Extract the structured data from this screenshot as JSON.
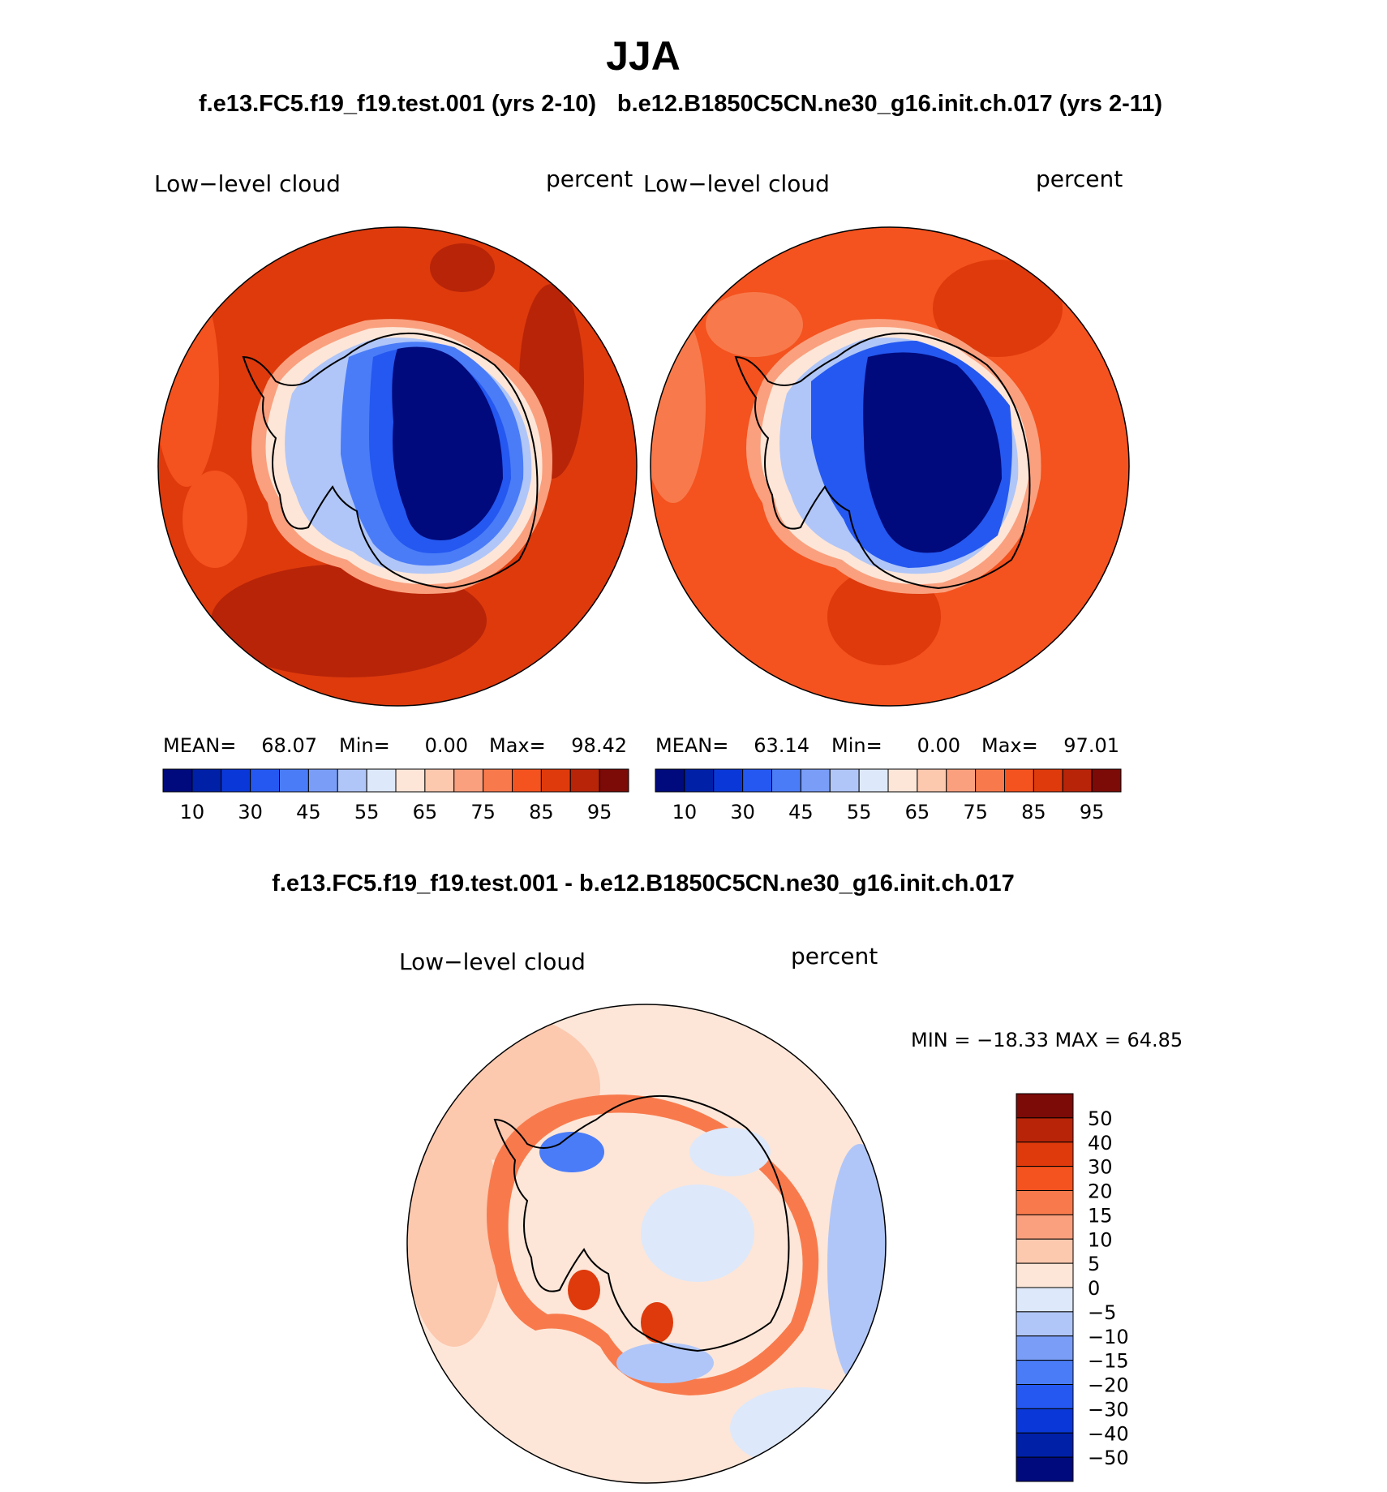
{
  "page": {
    "season": "JJA",
    "left_case": "f.e13.FC5.f19_f19.test.001 (yrs 2-10)",
    "right_case": "b.e12.B1850C5CN.ne30_g16.init.ch.017 (yrs 2-11)",
    "diff_title": "f.e13.FC5.f19_f19.test.001 - b.e12.B1850C5CN.ne30_g16.init.ch.017"
  },
  "panels": {
    "left": {
      "variable": "Low−level cloud",
      "units": "percent",
      "mean_label": "MEAN=",
      "mean": "68.07",
      "min_label": "Min=",
      "min": "0.00",
      "max_label": "Max=",
      "max": "98.42"
    },
    "right": {
      "variable": "Low−level cloud",
      "units": "percent",
      "mean_label": "MEAN=",
      "mean": "63.14",
      "min_label": "Min=",
      "min": "0.00",
      "max_label": "Max=",
      "max": "97.01"
    },
    "diff": {
      "variable": "Low−level cloud",
      "units": "percent",
      "minmax": "MIN = −18.33 MAX =   64.85"
    }
  },
  "colorbars": {
    "field": {
      "colors": [
        "#000a7c",
        "#0020a8",
        "#0a38d8",
        "#2458f0",
        "#4a7cf8",
        "#7a9ef8",
        "#b0c6f8",
        "#dde8fa",
        "#fde6d8",
        "#fcc8ae",
        "#faa07e",
        "#f87a4c",
        "#f4521e",
        "#de3a0c",
        "#b82408",
        "#7c0a06"
      ],
      "tick_labels": [
        "10",
        "30",
        "45",
        "55",
        "65",
        "75",
        "85",
        "95"
      ]
    },
    "diff": {
      "colors": [
        "#000a7c",
        "#0020a8",
        "#0a38d8",
        "#2458f0",
        "#4a7cf8",
        "#7a9ef8",
        "#b0c6f8",
        "#dde8fa",
        "#fde6d8",
        "#fcc8ae",
        "#faa07e",
        "#f87a4c",
        "#f4521e",
        "#de3a0c",
        "#b82408",
        "#7c0a06"
      ],
      "tick_labels": [
        "50",
        "40",
        "30",
        "20",
        "15",
        "10",
        "5",
        "0",
        "−5",
        "−10",
        "−15",
        "−20",
        "−30",
        "−40",
        "−50"
      ]
    }
  }
}
